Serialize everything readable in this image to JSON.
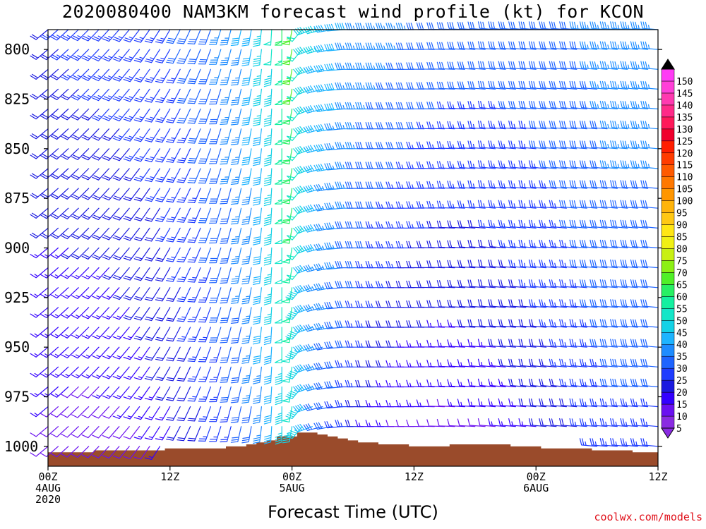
{
  "header": {
    "title": "2020080400 NAM3KM forecast wind profile (kt) for KCON"
  },
  "footer": {
    "xlabel": "Forecast Time (UTC)",
    "credit": "coolwx.com/models"
  },
  "chart_data": {
    "type": "wind-barb-profile",
    "title": "2020080400 NAM3KM forecast wind profile (kt) for KCON",
    "xlabel": "Forecast Time (UTC)",
    "ylabel": "",
    "x_unit": "forecast hour",
    "xlim": [
      0,
      60
    ],
    "y_unit": "hPa",
    "ylim": [
      1010,
      790
    ],
    "y_ticks": [
      800,
      825,
      850,
      875,
      900,
      925,
      950,
      975,
      1000
    ],
    "x_ticks": [
      {
        "hour": 0,
        "lines": [
          "00Z",
          "4AUG",
          "2020"
        ]
      },
      {
        "hour": 12,
        "lines": [
          "12Z"
        ]
      },
      {
        "hour": 24,
        "lines": [
          "00Z",
          "5AUG"
        ]
      },
      {
        "hour": 36,
        "lines": [
          "12Z"
        ]
      },
      {
        "hour": 48,
        "lines": [
          "00Z",
          "6AUG"
        ]
      },
      {
        "hour": 60,
        "lines": [
          "12Z"
        ]
      }
    ],
    "time_step_hours": 1,
    "level_step_hpa": 10,
    "surface_pressure_hpa": [
      1003,
      1003,
      1003,
      1003,
      1003,
      1002,
      1002,
      1002,
      1002,
      1002,
      1002,
      1002,
      1001,
      1001,
      1001,
      1001,
      1001,
      1001,
      1000,
      1000,
      999,
      998,
      997,
      995,
      995,
      993,
      993,
      994,
      995,
      996,
      997,
      998,
      998,
      999,
      999,
      999,
      1000,
      1000,
      1000,
      1000,
      999,
      999,
      999,
      999,
      999,
      999,
      1000,
      1000,
      1000,
      1001,
      1001,
      1001,
      1001,
      1001,
      1002,
      1002,
      1002,
      1002,
      1003,
      1003,
      1003
    ],
    "wind_speed_anchors_kt": [
      {
        "hour": 0,
        "low": 10,
        "high": 22
      },
      {
        "hour": 3,
        "low": 8,
        "high": 24
      },
      {
        "hour": 6,
        "low": 8,
        "high": 25
      },
      {
        "hour": 9,
        "low": 10,
        "high": 26
      },
      {
        "hour": 12,
        "low": 15,
        "high": 27
      },
      {
        "hour": 15,
        "low": 20,
        "high": 30
      },
      {
        "hour": 18,
        "low": 25,
        "high": 35
      },
      {
        "hour": 20,
        "low": 30,
        "high": 40
      },
      {
        "hour": 22,
        "low": 38,
        "high": 48
      },
      {
        "hour": 23,
        "low": 42,
        "high": 58
      },
      {
        "hour": 24,
        "low": 45,
        "high": 65
      },
      {
        "hour": 25,
        "low": 45,
        "high": 50
      },
      {
        "hour": 27,
        "low": 30,
        "high": 43
      },
      {
        "hour": 30,
        "low": 22,
        "high": 38
      },
      {
        "hour": 33,
        "low": 12,
        "high": 35
      },
      {
        "hour": 36,
        "low": 8,
        "high": 33
      },
      {
        "hour": 40,
        "low": 8,
        "high": 30
      },
      {
        "hour": 44,
        "low": 10,
        "high": 30
      },
      {
        "hour": 48,
        "low": 15,
        "high": 30
      },
      {
        "hour": 52,
        "low": 20,
        "high": 32
      },
      {
        "hour": 56,
        "low": 25,
        "high": 35
      },
      {
        "hour": 60,
        "low": 25,
        "high": 35
      }
    ],
    "wind_direction_anchors_deg": [
      {
        "hour": 0,
        "deg": 230
      },
      {
        "hour": 8,
        "deg": 220
      },
      {
        "hour": 14,
        "deg": 205
      },
      {
        "hour": 20,
        "deg": 190
      },
      {
        "hour": 23,
        "deg": 180
      },
      {
        "hour": 24,
        "deg": 190
      },
      {
        "hour": 26,
        "deg": 250
      },
      {
        "hour": 30,
        "deg": 270
      },
      {
        "hour": 36,
        "deg": 270
      },
      {
        "hour": 44,
        "deg": 275
      },
      {
        "hour": 50,
        "deg": 275
      },
      {
        "hour": 60,
        "deg": 275
      }
    ],
    "colorbar": {
      "labels": [
        5,
        10,
        15,
        20,
        25,
        30,
        35,
        40,
        45,
        50,
        55,
        60,
        65,
        70,
        75,
        80,
        85,
        90,
        95,
        100,
        105,
        110,
        115,
        120,
        125,
        130,
        135,
        140,
        145,
        150
      ],
      "colors": [
        "#8a2be2",
        "#6a10f0",
        "#3300ff",
        "#1a1ae0",
        "#1e3cff",
        "#1e64ff",
        "#1e8cff",
        "#1eb4ff",
        "#14d2e6",
        "#14e6c8",
        "#14f0a0",
        "#28f064",
        "#50f028",
        "#8cf014",
        "#c8f014",
        "#f0f014",
        "#ffe614",
        "#ffc814",
        "#ffb40a",
        "#ff9600",
        "#ff7800",
        "#ff5a00",
        "#ff3c00",
        "#ff1e00",
        "#f0002d",
        "#ff1a5a",
        "#ff2a88",
        "#ff3ab0",
        "#ff40d8",
        "#ff3cf5"
      ],
      "arrows": true
    },
    "colors": {
      "ground": "#9a4b2b",
      "frame": "#000000",
      "background": "#ffffff"
    }
  }
}
